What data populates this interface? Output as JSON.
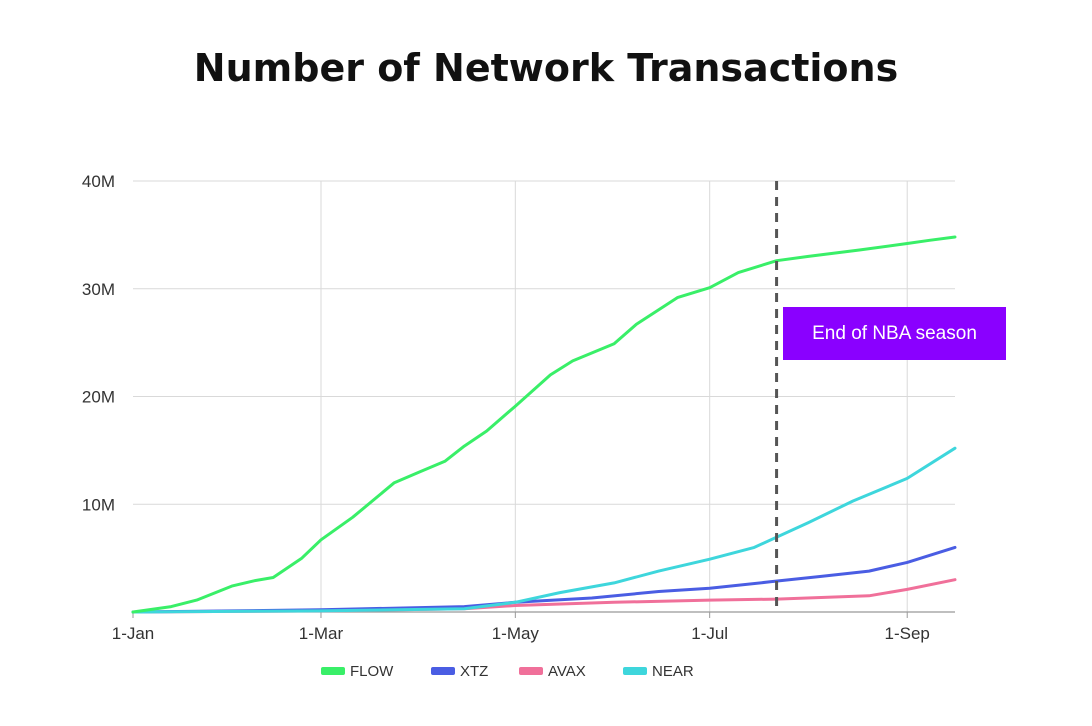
{
  "title": "Number of Network Transactions",
  "colors": {
    "grid": "#d9d9d9",
    "axis": "#999999",
    "annotation_line": "#555555",
    "annotation_bg": "#8a00ff"
  },
  "annotation": {
    "label": "End of NBA season",
    "x": "2021-07-22"
  },
  "chart_data": {
    "type": "line",
    "title": "Number of Network Transactions",
    "xlabel": "",
    "ylabel": "",
    "x_ticks": [
      "1-Jan",
      "1-Mar",
      "1-May",
      "1-Jul",
      "1-Sep"
    ],
    "x_tick_dates": [
      "2021-01-01",
      "2021-03-01",
      "2021-05-01",
      "2021-07-01",
      "2021-09-01"
    ],
    "xlim": [
      "2021-01-01",
      "2021-09-16"
    ],
    "y_ticks": [
      "",
      "10M",
      "20M",
      "30M",
      "40M"
    ],
    "y_tick_values": [
      0,
      10,
      20,
      30,
      40
    ],
    "ylim": [
      0,
      40
    ],
    "y_unit": "M",
    "grid": true,
    "legend": "bottom",
    "series": [
      {
        "name": "FLOW",
        "color": "#39ef68",
        "x": [
          "2021-01-01",
          "2021-01-13",
          "2021-01-21",
          "2021-02-01",
          "2021-02-08",
          "2021-02-14",
          "2021-02-23",
          "2021-03-01",
          "2021-03-11",
          "2021-03-24",
          "2021-04-01",
          "2021-04-09",
          "2021-04-15",
          "2021-04-22",
          "2021-05-01",
          "2021-05-12",
          "2021-05-19",
          "2021-06-01",
          "2021-06-08",
          "2021-06-21",
          "2021-07-01",
          "2021-07-10",
          "2021-07-22",
          "2021-08-01",
          "2021-08-17",
          "2021-09-01",
          "2021-09-08",
          "2021-09-16"
        ],
        "values": [
          0,
          0.5,
          1.1,
          2.4,
          2.9,
          3.2,
          5.0,
          6.7,
          8.8,
          12.0,
          13.0,
          14.0,
          15.4,
          16.8,
          19.1,
          22.0,
          23.3,
          24.9,
          26.7,
          29.2,
          30.1,
          31.5,
          32.6,
          33.0,
          33.6,
          34.2,
          34.5,
          34.8
        ]
      },
      {
        "name": "XTZ",
        "color": "#4a5de3",
        "x": [
          "2021-01-01",
          "2021-02-01",
          "2021-03-01",
          "2021-04-15",
          "2021-05-01",
          "2021-05-25",
          "2021-06-15",
          "2021-07-01",
          "2021-07-20",
          "2021-08-05",
          "2021-08-20",
          "2021-09-01",
          "2021-09-16"
        ],
        "values": [
          0,
          0.1,
          0.2,
          0.5,
          0.9,
          1.3,
          1.9,
          2.2,
          2.8,
          3.3,
          3.8,
          4.6,
          6.0
        ]
      },
      {
        "name": "AVAX",
        "color": "#f0709a",
        "x": [
          "2021-01-01",
          "2021-03-01",
          "2021-04-15",
          "2021-05-01",
          "2021-06-01",
          "2021-07-01",
          "2021-07-22",
          "2021-08-20",
          "2021-09-01",
          "2021-09-16"
        ],
        "values": [
          0,
          0.1,
          0.3,
          0.6,
          0.9,
          1.1,
          1.2,
          1.5,
          2.1,
          3.0
        ]
      },
      {
        "name": "NEAR",
        "color": "#3ed6dc",
        "x": [
          "2021-01-01",
          "2021-03-01",
          "2021-04-15",
          "2021-05-01",
          "2021-05-15",
          "2021-06-01",
          "2021-06-15",
          "2021-07-01",
          "2021-07-15",
          "2021-08-01",
          "2021-08-15",
          "2021-09-01",
          "2021-09-16"
        ],
        "values": [
          0,
          0.1,
          0.3,
          0.9,
          1.8,
          2.7,
          3.8,
          4.9,
          6.0,
          8.3,
          10.3,
          12.4,
          15.2
        ]
      }
    ]
  }
}
